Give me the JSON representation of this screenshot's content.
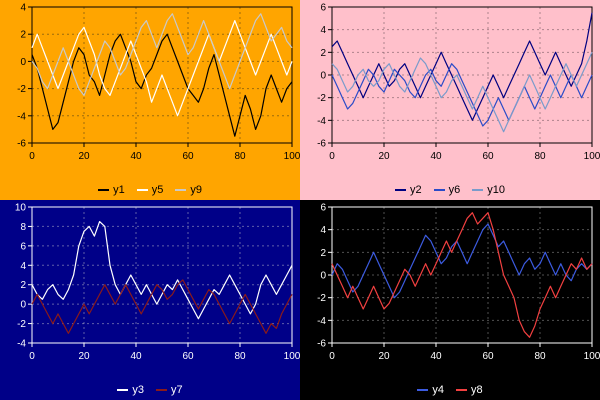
{
  "chart_data": [
    {
      "id": "top-left",
      "type": "line",
      "bg": "#FFA500",
      "fg": "#000000",
      "grid": "rgba(90,70,20,0.6)",
      "xlim": [
        0,
        100
      ],
      "xticks": [
        0,
        20,
        40,
        60,
        80,
        100
      ],
      "ylim": [
        -6,
        4
      ],
      "yticks": [
        4,
        2,
        0,
        -2,
        -4,
        -6
      ],
      "x_step": 2,
      "legend_position": "bottom",
      "series": [
        {
          "name": "y1",
          "color": "#000000",
          "values": [
            0.5,
            -0.5,
            -2,
            -3.5,
            -5,
            -4.5,
            -3,
            -1.5,
            0,
            1,
            0.5,
            -1,
            -1.5,
            -2.5,
            -1,
            0.5,
            1.5,
            2,
            1,
            0,
            -1.5,
            -2,
            -1,
            -0.5,
            0.5,
            1.5,
            2,
            1,
            0,
            -1,
            -2,
            -2.5,
            -3,
            -2,
            -0.5,
            0.5,
            -1,
            -2.5,
            -4,
            -5.5,
            -4,
            -2.5,
            -3.5,
            -5,
            -4,
            -2,
            -1,
            -2,
            -3,
            -2,
            -1.5
          ]
        },
        {
          "name": "y5",
          "color": "#FFFFFF",
          "values": [
            1,
            2,
            1,
            0,
            -1,
            -2,
            -1,
            0,
            1,
            2,
            2.5,
            1.5,
            0.5,
            -1,
            -2,
            -2.5,
            -1.5,
            -0.5,
            0.5,
            1.5,
            0.5,
            -0.5,
            -1.5,
            -3,
            -2,
            -1,
            -2,
            -3,
            -4,
            -3,
            -2,
            -1,
            0,
            1,
            2,
            1,
            0,
            1,
            2,
            3,
            2,
            1,
            0,
            -1,
            0,
            1,
            2,
            1,
            0,
            -1,
            0
          ]
        },
        {
          "name": "y9",
          "color": "#C9C9C9",
          "values": [
            0,
            -0.5,
            -1.5,
            -2,
            -1,
            0,
            1,
            0,
            -1,
            -2,
            -2.5,
            -1.5,
            -0.5,
            0.5,
            1.5,
            1,
            0,
            -1,
            -0.5,
            0.5,
            1.5,
            2.5,
            3,
            2,
            1,
            2,
            3,
            3.5,
            2.5,
            1.5,
            0.5,
            1,
            2,
            3,
            2,
            1,
            0,
            -1,
            -2,
            -1,
            0,
            1,
            2,
            3,
            3.5,
            2.5,
            1.5,
            2,
            2.5,
            1.5,
            1
          ]
        }
      ]
    },
    {
      "id": "top-right",
      "type": "line",
      "bg": "#FFC0CB",
      "fg": "#000000",
      "grid": "rgba(120,90,100,0.6)",
      "xlim": [
        0,
        100
      ],
      "xticks": [
        0,
        20,
        40,
        60,
        80,
        100
      ],
      "ylim": [
        -6,
        6
      ],
      "yticks": [
        6,
        4,
        2,
        0,
        -2,
        -4,
        -6
      ],
      "x_step": 2,
      "legend_position": "bottom",
      "series": [
        {
          "name": "y2",
          "color": "#000080",
          "values": [
            2.5,
            3,
            2,
            1,
            0,
            -1,
            -2,
            -1,
            0,
            1,
            0,
            -1,
            -0.5,
            0.5,
            1,
            0,
            -1,
            -2,
            -1,
            0,
            1,
            2,
            1,
            0,
            -1,
            -2,
            -3,
            -4,
            -3,
            -2,
            -1,
            0,
            -1,
            -2,
            -1,
            0,
            1,
            2,
            3,
            2,
            1,
            0,
            1,
            2,
            1,
            0,
            -1,
            0,
            1,
            3,
            5.5
          ]
        },
        {
          "name": "y6",
          "color": "#2B4BC8",
          "values": [
            0,
            -1,
            -2,
            -3,
            -2.5,
            -1.5,
            -0.5,
            0.5,
            0,
            -1,
            -1.5,
            -0.5,
            0.5,
            0,
            -0.5,
            -1.5,
            -2,
            -1,
            0,
            0.5,
            -0.5,
            -1,
            0,
            1,
            0.5,
            -0.5,
            -1.5,
            -2.5,
            -3.5,
            -4.5,
            -4,
            -3,
            -2,
            -3,
            -4,
            -3,
            -2,
            -1,
            -2,
            -3,
            -2,
            -1,
            0,
            -1,
            -2,
            -1,
            0,
            -1,
            -2,
            -1,
            0
          ]
        },
        {
          "name": "y10",
          "color": "#7A9BCB",
          "values": [
            1,
            0.5,
            -0.5,
            -1.5,
            -1,
            0,
            0.5,
            -0.5,
            -1,
            -0.5,
            0.5,
            1,
            0,
            -1,
            -1.5,
            -0.5,
            0.5,
            1.5,
            1,
            0,
            -1,
            -2,
            -1.5,
            -0.5,
            0,
            -1,
            -2,
            -3,
            -2,
            -1,
            -2,
            -3,
            -4,
            -5,
            -4,
            -3,
            -2,
            -1,
            0,
            -1,
            -2,
            -3,
            -2,
            -1,
            0,
            1,
            0,
            -1,
            0,
            1,
            2
          ]
        }
      ]
    },
    {
      "id": "bottom-left",
      "type": "line",
      "bg": "#000088",
      "fg": "#FFFFFF",
      "grid": "rgba(210,210,210,0.45)",
      "xlim": [
        0,
        100
      ],
      "xticks": [
        0,
        20,
        40,
        60,
        80,
        100
      ],
      "ylim": [
        -4,
        10
      ],
      "yticks": [
        10,
        8,
        6,
        4,
        2,
        0,
        -2,
        -4
      ],
      "x_step": 2,
      "legend_position": "bottom",
      "series": [
        {
          "name": "y3",
          "color": "#FFFFFF",
          "values": [
            2,
            1,
            0.5,
            1.5,
            2,
            1,
            0.5,
            1.5,
            3,
            6,
            7.5,
            8,
            7,
            8.5,
            8,
            4,
            2,
            1,
            2,
            3,
            2,
            1,
            2,
            1,
            0,
            1,
            2,
            1.5,
            2.5,
            1.5,
            0.5,
            -0.5,
            -1.5,
            -0.5,
            0.5,
            1.5,
            1,
            2,
            3,
            2,
            1,
            0,
            -1,
            0,
            2,
            3,
            2,
            1,
            2,
            3,
            4
          ]
        },
        {
          "name": "y7",
          "color": "#8B1A1A",
          "values": [
            0,
            1,
            0,
            -1,
            -2,
            -1,
            -2,
            -3,
            -2,
            -1,
            0,
            -1,
            0,
            1,
            2,
            1,
            0,
            1,
            2,
            1,
            0,
            -1,
            0,
            1,
            2,
            1.5,
            0.5,
            1,
            2,
            2.5,
            1.5,
            0.5,
            -0.5,
            0.5,
            1.5,
            1,
            0,
            -1,
            -2,
            -1,
            0,
            1,
            0,
            -1,
            -2,
            -3,
            -2,
            -2.5,
            -1,
            0,
            1
          ]
        }
      ]
    },
    {
      "id": "bottom-right",
      "type": "line",
      "bg": "#000000",
      "fg": "#FFFFFF",
      "grid": "rgba(180,180,180,0.45)",
      "xlim": [
        0,
        100
      ],
      "xticks": [
        0,
        20,
        40,
        60,
        80,
        100
      ],
      "ylim": [
        -6,
        6
      ],
      "yticks": [
        6,
        4,
        2,
        0,
        -2,
        -4,
        -6
      ],
      "x_step": 2,
      "legend_position": "bottom",
      "series": [
        {
          "name": "y4",
          "color": "#3C5BE0",
          "values": [
            0,
            1,
            0.5,
            -0.5,
            -1.5,
            -1,
            0,
            1,
            2,
            1,
            0,
            -1,
            -2,
            -1.5,
            -0.5,
            0.5,
            1.5,
            2.5,
            3.5,
            3,
            2,
            1,
            1.5,
            2.5,
            3,
            2,
            1,
            2,
            3,
            4,
            4.5,
            3.5,
            2.5,
            3,
            2,
            1,
            0,
            1,
            1.5,
            0.5,
            1,
            2,
            1,
            0,
            1,
            0,
            -0.5,
            0.5,
            1,
            0.5,
            1
          ]
        },
        {
          "name": "y8",
          "color": "#F24040",
          "values": [
            1,
            0,
            -1,
            -2,
            -1,
            -2,
            -3,
            -2,
            -1,
            -2,
            -3,
            -2.5,
            -1.5,
            -0.5,
            0.5,
            0,
            -1,
            0,
            1,
            0,
            1,
            2,
            3,
            2,
            3,
            4,
            5,
            5.5,
            4.5,
            5,
            5.5,
            4,
            2,
            0,
            -1,
            -2,
            -4,
            -5,
            -5.5,
            -4.5,
            -3,
            -2,
            -1,
            -2,
            -1,
            0,
            1,
            0.5,
            1.5,
            0.5,
            1
          ]
        }
      ]
    }
  ]
}
